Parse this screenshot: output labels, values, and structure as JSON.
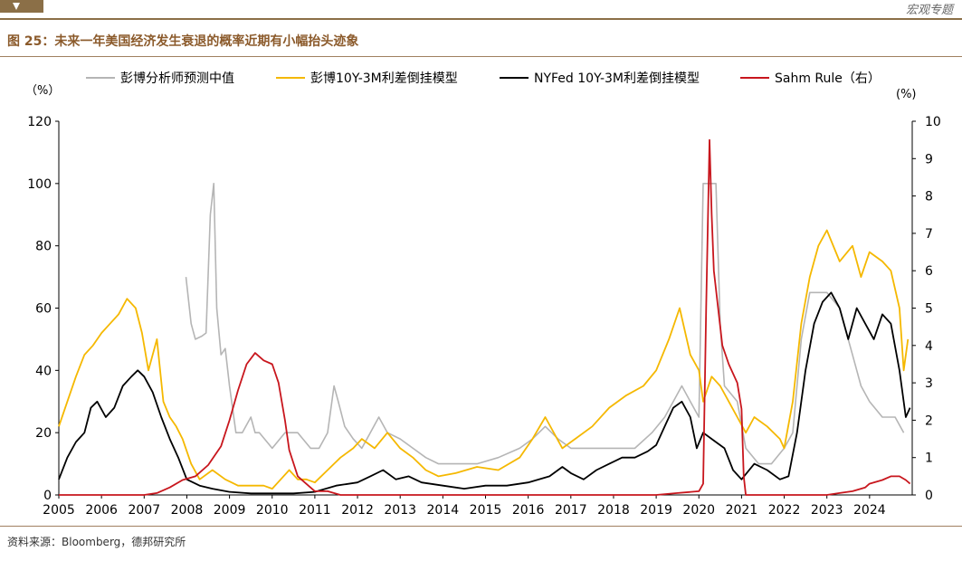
{
  "header": {
    "tag": "宏观专题"
  },
  "figure_title": "图 25：未来一年美国经济发生衰退的概率近期有小幅抬头迹象",
  "source": "资料来源：Bloomberg，德邦研究所",
  "colors": {
    "gray": "#b5b5b5",
    "gold": "#f5b800",
    "black": "#000000",
    "red": "#c8161d",
    "brand": "#8b6f47"
  },
  "chart_data": {
    "type": "line",
    "y_left_unit": "（%）",
    "y_right_unit": "(%)",
    "ylim_left": [
      0,
      120
    ],
    "ylim_right": [
      0,
      10
    ],
    "yticks_left": [
      "0",
      "20",
      "40",
      "60",
      "80",
      "100",
      "120"
    ],
    "yticks_right": [
      "0",
      "1",
      "2",
      "3",
      "4",
      "5",
      "6",
      "7",
      "8",
      "9",
      "10"
    ],
    "xlim": [
      2005,
      2025
    ],
    "xticks": [
      "2005",
      "2006",
      "2007",
      "2008",
      "2009",
      "2010",
      "2011",
      "2012",
      "2013",
      "2014",
      "2015",
      "2016",
      "2017",
      "2018",
      "2019",
      "2020",
      "2021",
      "2022",
      "2023",
      "2024"
    ],
    "legend": [
      {
        "name": "彭博分析师预测中值",
        "color": "#b5b5b5"
      },
      {
        "name": "彭博10Y-3M利差倒挂模型",
        "color": "#f5b800"
      },
      {
        "name": "NYFed 10Y-3M利差倒挂模型",
        "color": "#000000"
      },
      {
        "name": "Sahm Rule（右）",
        "color": "#c8161d"
      }
    ],
    "series": [
      {
        "name": "彭博分析师预测中值",
        "axis": "left",
        "x": [
          2007.98,
          2008.1,
          2008.2,
          2008.35,
          2008.45,
          2008.55,
          2008.63,
          2008.7,
          2008.8,
          2008.9,
          2009.0,
          2009.15,
          2009.3,
          2009.5,
          2009.6,
          2009.7,
          2010.0,
          2010.3,
          2010.6,
          2010.9,
          2011.1,
          2011.3,
          2011.45,
          2011.55,
          2011.7,
          2011.9,
          2012.1,
          2012.3,
          2012.5,
          2012.7,
          2013.0,
          2013.3,
          2013.6,
          2013.9,
          2014.3,
          2014.8,
          2015.3,
          2015.8,
          2016.1,
          2016.4,
          2016.7,
          2017.0,
          2017.5,
          2018.0,
          2018.5,
          2018.9,
          2019.2,
          2019.4,
          2019.6,
          2019.8,
          2020.0,
          2020.1,
          2020.12,
          2020.4,
          2020.5,
          2020.6,
          2020.9,
          2021.1,
          2021.4,
          2021.7,
          2022.0,
          2022.2,
          2022.4,
          2022.6,
          2022.8,
          2023.0,
          2023.3,
          2023.6,
          2023.8,
          2024.0,
          2024.3,
          2024.6,
          2024.8
        ],
        "values": [
          70,
          55,
          50,
          51,
          52,
          90,
          100,
          60,
          45,
          47,
          35,
          20,
          20,
          25,
          20,
          20,
          15,
          20,
          20,
          15,
          15,
          20,
          35,
          30,
          22,
          18,
          15,
          20,
          25,
          20,
          18,
          15,
          12,
          10,
          10,
          10,
          12,
          15,
          18,
          22,
          18,
          15,
          15,
          15,
          15,
          20,
          25,
          30,
          35,
          30,
          25,
          100,
          100,
          100,
          55,
          35,
          30,
          15,
          10,
          10,
          15,
          20,
          50,
          65,
          65,
          65,
          60,
          45,
          35,
          30,
          25,
          25,
          20
        ]
      },
      {
        "name": "彭博10Y-3M利差倒挂模型",
        "axis": "left",
        "x": [
          2005.0,
          2005.2,
          2005.4,
          2005.6,
          2005.8,
          2006.0,
          2006.2,
          2006.4,
          2006.6,
          2006.8,
          2006.95,
          2007.1,
          2007.3,
          2007.45,
          2007.6,
          2007.75,
          2007.9,
          2008.1,
          2008.3,
          2008.6,
          2008.9,
          2009.2,
          2009.5,
          2009.8,
          2010.0,
          2010.2,
          2010.4,
          2010.6,
          2010.8,
          2011.0,
          2011.3,
          2011.6,
          2011.9,
          2012.1,
          2012.4,
          2012.7,
          2013.0,
          2013.3,
          2013.6,
          2013.9,
          2014.3,
          2014.8,
          2015.3,
          2015.8,
          2016.1,
          2016.4,
          2016.8,
          2017.1,
          2017.5,
          2017.9,
          2018.3,
          2018.7,
          2019.0,
          2019.3,
          2019.55,
          2019.8,
          2020.0,
          2020.1,
          2020.3,
          2020.5,
          2020.7,
          2020.9,
          2021.1,
          2021.3,
          2021.6,
          2021.9,
          2022.0,
          2022.2,
          2022.4,
          2022.6,
          2022.8,
          2023.0,
          2023.3,
          2023.6,
          2023.8,
          2024.0,
          2024.3,
          2024.5,
          2024.7,
          2024.8,
          2024.9
        ],
        "values": [
          22,
          30,
          38,
          45,
          48,
          52,
          55,
          58,
          63,
          60,
          52,
          40,
          50,
          30,
          25,
          22,
          18,
          10,
          5,
          8,
          5,
          3,
          3,
          3,
          2,
          5,
          8,
          5,
          5,
          4,
          8,
          12,
          15,
          18,
          15,
          20,
          15,
          12,
          8,
          6,
          7,
          9,
          8,
          12,
          18,
          25,
          15,
          18,
          22,
          28,
          32,
          35,
          40,
          50,
          60,
          45,
          40,
          30,
          38,
          35,
          30,
          25,
          20,
          25,
          22,
          18,
          15,
          30,
          55,
          70,
          80,
          85,
          75,
          80,
          70,
          78,
          75,
          72,
          60,
          40,
          50
        ]
      },
      {
        "name": "NYFed 10Y-3M利差倒挂模型",
        "axis": "left",
        "x": [
          2005.0,
          2005.2,
          2005.4,
          2005.6,
          2005.75,
          2005.9,
          2006.1,
          2006.3,
          2006.5,
          2006.7,
          2006.85,
          2007.0,
          2007.2,
          2007.4,
          2007.6,
          2007.8,
          2008.0,
          2008.3,
          2008.6,
          2009.0,
          2009.5,
          2010.0,
          2010.5,
          2011.0,
          2011.5,
          2012.0,
          2012.3,
          2012.6,
          2012.9,
          2013.2,
          2013.5,
          2014.0,
          2014.5,
          2015.0,
          2015.5,
          2016.0,
          2016.5,
          2016.8,
          2017.0,
          2017.3,
          2017.6,
          2017.9,
          2018.2,
          2018.5,
          2018.8,
          2019.0,
          2019.2,
          2019.4,
          2019.6,
          2019.8,
          2019.95,
          2020.1,
          2020.3,
          2020.6,
          2020.8,
          2021.0,
          2021.3,
          2021.6,
          2021.9,
          2022.1,
          2022.3,
          2022.5,
          2022.7,
          2022.9,
          2023.1,
          2023.3,
          2023.5,
          2023.7,
          2023.9,
          2024.1,
          2024.3,
          2024.5,
          2024.7,
          2024.85,
          2024.95
        ],
        "values": [
          5,
          12,
          17,
          20,
          28,
          30,
          25,
          28,
          35,
          38,
          40,
          38,
          33,
          25,
          18,
          12,
          5,
          3,
          2,
          1,
          0.5,
          0.5,
          0.5,
          1,
          3,
          4,
          6,
          8,
          5,
          6,
          4,
          3,
          2,
          3,
          3,
          4,
          6,
          9,
          7,
          5,
          8,
          10,
          12,
          12,
          14,
          16,
          22,
          28,
          30,
          25,
          15,
          20,
          18,
          15,
          8,
          5,
          10,
          8,
          5,
          6,
          20,
          40,
          55,
          62,
          65,
          60,
          50,
          60,
          55,
          50,
          58,
          55,
          40,
          25,
          28
        ]
      },
      {
        "name": "Sahm Rule（右）",
        "axis": "right",
        "x": [
          2005.0,
          2006.0,
          2007.0,
          2007.3,
          2007.6,
          2007.9,
          2008.2,
          2008.5,
          2008.8,
          2009.0,
          2009.2,
          2009.4,
          2009.6,
          2009.8,
          2010.0,
          2010.15,
          2010.3,
          2010.4,
          2010.6,
          2011.0,
          2011.3,
          2011.6,
          2012.0,
          2015.0,
          2018.0,
          2019.0,
          2019.5,
          2020.0,
          2020.1,
          2020.17,
          2020.25,
          2020.3,
          2020.35,
          2020.45,
          2020.55,
          2020.7,
          2020.9,
          2021.0,
          2021.05,
          2021.1,
          2022.0,
          2023.0,
          2023.3,
          2023.6,
          2023.9,
          2024.0,
          2024.3,
          2024.5,
          2024.7,
          2024.85,
          2024.95
        ],
        "values": [
          0,
          0,
          0,
          0.05,
          0.2,
          0.4,
          0.5,
          0.8,
          1.3,
          2.0,
          2.8,
          3.5,
          3.8,
          3.6,
          3.5,
          3.0,
          2.0,
          1.2,
          0.5,
          0.1,
          0.1,
          0,
          0,
          0,
          0,
          0,
          0.05,
          0.1,
          0.3,
          5.0,
          9.5,
          7.5,
          6.0,
          5.0,
          4.0,
          3.5,
          3.0,
          2.3,
          0.5,
          0,
          0,
          0,
          0.05,
          0.1,
          0.2,
          0.3,
          0.4,
          0.5,
          0.5,
          0.4,
          0.3
        ]
      }
    ]
  }
}
